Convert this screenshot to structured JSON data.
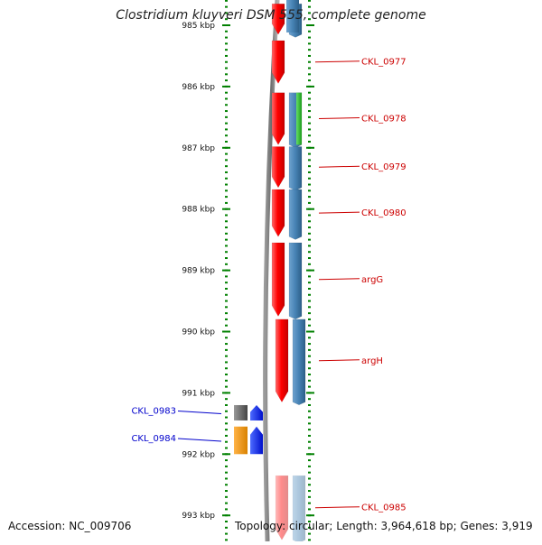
{
  "title": "Clostridium kluyveri DSM 555, complete genome",
  "footer": {
    "accession": "Accession: NC_009706",
    "topology": "Topology: circular; Length: 3,964,618 bp; Genes: 3,919"
  },
  "ruler": [
    {
      "label": "985 kbp",
      "kbp": 985
    },
    {
      "label": "986 kbp",
      "kbp": 986
    },
    {
      "label": "987 kbp",
      "kbp": 987
    },
    {
      "label": "988 kbp",
      "kbp": 988
    },
    {
      "label": "989 kbp",
      "kbp": 989
    },
    {
      "label": "990 kbp",
      "kbp": 990
    },
    {
      "label": "991 kbp",
      "kbp": 991
    },
    {
      "label": "992 kbp",
      "kbp": 992
    },
    {
      "label": "993 kbp",
      "kbp": 993
    }
  ],
  "forward_genes": [
    {
      "label": "CKL_0983",
      "start_kbp": 991.2,
      "end_kbp": 991.45
    },
    {
      "label": "CKL_0984",
      "start_kbp": 991.55,
      "end_kbp": 992.0
    }
  ],
  "reverse_genes": [
    {
      "label": "",
      "start_kbp": 984.65,
      "end_kbp": 985.15
    },
    {
      "label": "CKL_0977",
      "start_kbp": 985.25,
      "end_kbp": 985.95
    },
    {
      "label": "CKL_0978",
      "start_kbp": 986.1,
      "end_kbp": 986.95
    },
    {
      "label": "CKL_0979",
      "start_kbp": 986.98,
      "end_kbp": 987.65
    },
    {
      "label": "CKL_0980",
      "start_kbp": 987.68,
      "end_kbp": 988.45
    },
    {
      "label": "argG",
      "start_kbp": 988.55,
      "end_kbp": 989.75
    },
    {
      "label": "argH",
      "start_kbp": 989.8,
      "end_kbp": 991.15
    },
    {
      "label": "CKL_0985",
      "start_kbp": 992.35,
      "end_kbp": 993.4
    }
  ],
  "colors": {
    "gene_red": "#ff0000",
    "cds_blue": "#4682b4",
    "label_red": "#cc0000",
    "label_blue": "#0000cc",
    "ruler_green": "#008000"
  }
}
